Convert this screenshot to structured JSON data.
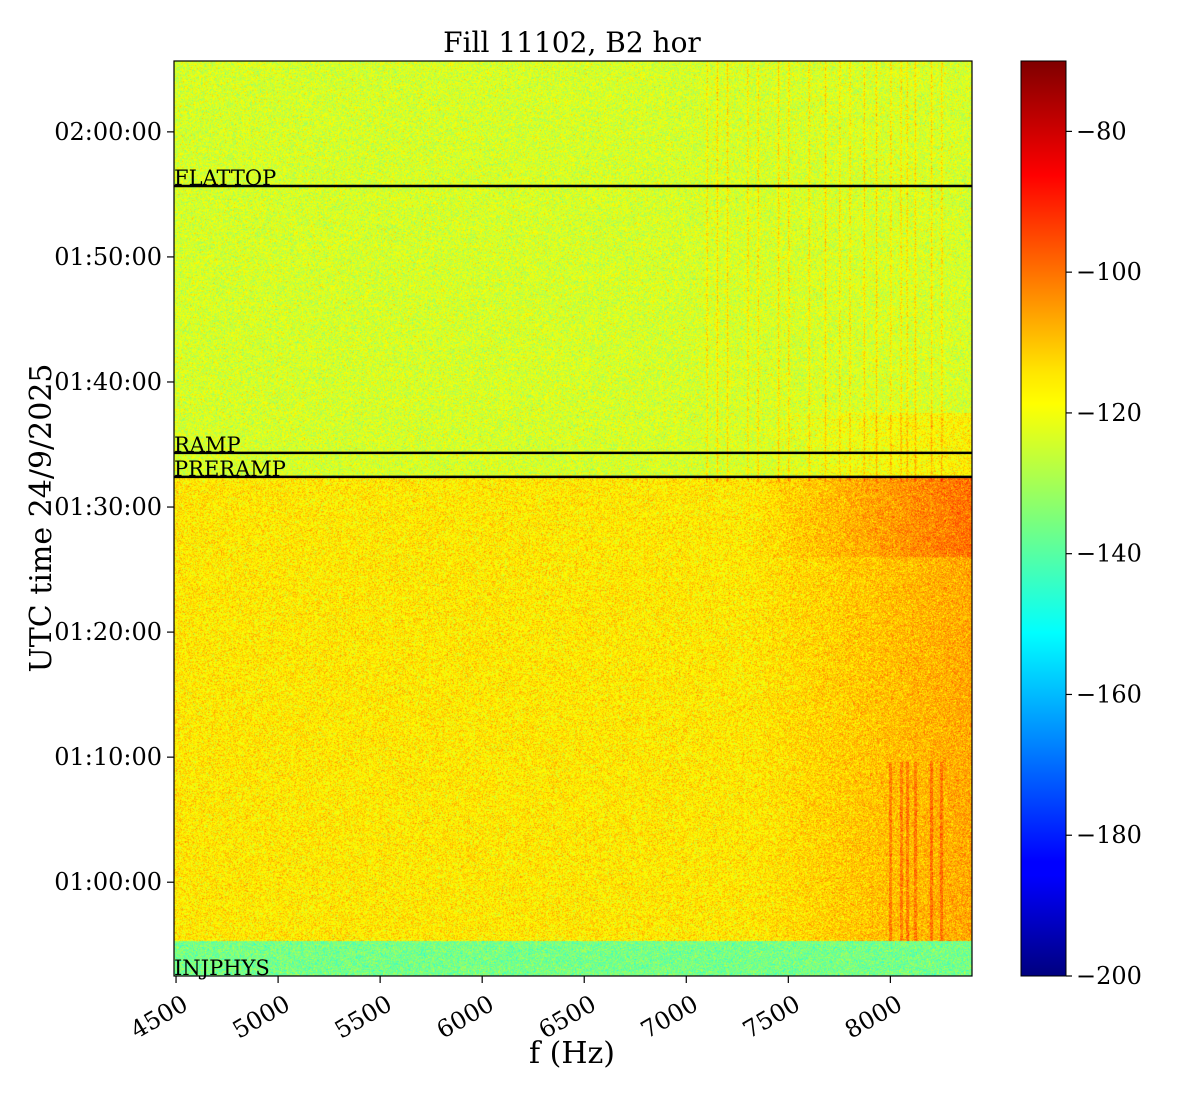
{
  "chart_data": {
    "type": "heatmap",
    "title": "Fill 11102, B2 hor",
    "xlabel": "f (Hz)",
    "ylabel": "UTC time 24/9/2025",
    "x_ticks": [
      4500,
      5000,
      5500,
      6000,
      6500,
      7000,
      7500,
      8000
    ],
    "x_tick_labels": [
      "4500",
      "5000",
      "5500",
      "6000",
      "6500",
      "7000",
      "7500",
      "8000"
    ],
    "xlim": [
      4490,
      8400
    ],
    "y_ticks": [
      "01:00:00",
      "01:10:00",
      "01:20:00",
      "01:30:00",
      "01:40:00",
      "01:50:00",
      "02:00:00"
    ],
    "ylim": [
      "00:52:30",
      "02:05:40"
    ],
    "colorbar": {
      "colormap": "jet",
      "range": [
        -200,
        -70
      ],
      "ticks": [
        -80,
        -100,
        -120,
        -140,
        -160,
        -180,
        -200
      ],
      "tick_labels": [
        "−80",
        "−100",
        "−120",
        "−140",
        "−160",
        "−180",
        "−200"
      ]
    },
    "annotations": [
      {
        "label": "FLATTOP",
        "time": "01:55:40"
      },
      {
        "label": "RAMP",
        "time": "01:34:20"
      },
      {
        "label": "PRERAMP",
        "time": "01:32:25"
      },
      {
        "label": "INJPHYS",
        "time": "00:52:30"
      }
    ],
    "regions": [
      {
        "name": "INJPHYS",
        "time_range": [
          "00:52:30",
          "00:55:20"
        ],
        "level": -136
      },
      {
        "name": "PRERAMP",
        "time_range": [
          "00:55:20",
          "01:32:25"
        ],
        "level": -116
      },
      {
        "name": "RAMP",
        "time_range": [
          "01:32:25",
          "02:05:40"
        ],
        "level": -124
      }
    ],
    "spectral_lines_hz": [
      7100,
      7150,
      7200,
      7300,
      7350,
      7450,
      7500,
      7600,
      7680,
      7750,
      7800,
      7870,
      7930,
      8000,
      8050,
      8080,
      8120,
      8200,
      8250
    ],
    "grid": false
  }
}
